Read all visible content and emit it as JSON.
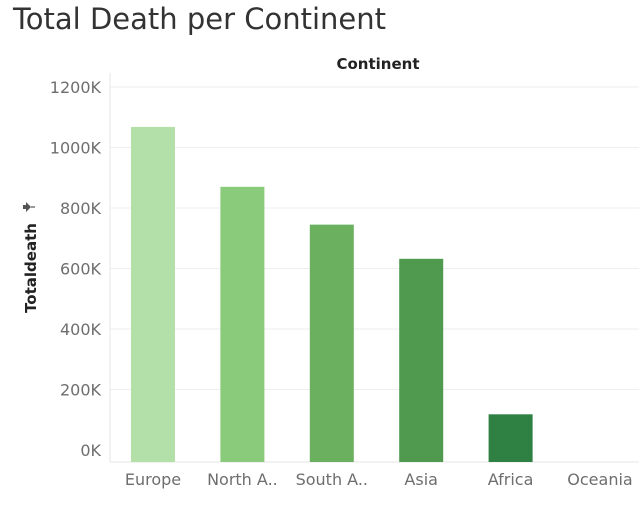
{
  "page": {
    "title": "Total Death per Continent"
  },
  "chart_data": {
    "type": "bar",
    "column_header": "Continent",
    "ylabel": "Totaldeath",
    "sort_icon": "pin-sort-icon",
    "categories": [
      "Europe",
      "North A..",
      "South A..",
      "Asia",
      "Africa",
      "Oceania"
    ],
    "values": [
      1068000,
      870000,
      745000,
      632000,
      118000,
      0
    ],
    "colors": [
      "#b3dfa8",
      "#89cb7a",
      "#6ab05f",
      "#4f9a4e",
      "#2e8043",
      "#1f6b36"
    ],
    "ylim": [
      0,
      1200000
    ],
    "yticks": [
      0,
      200000,
      400000,
      600000,
      800000,
      1000000,
      1200000
    ],
    "ytick_labels": [
      "0K",
      "200K",
      "400K",
      "600K",
      "800K",
      "1000K",
      "1200K"
    ],
    "grid": true
  }
}
